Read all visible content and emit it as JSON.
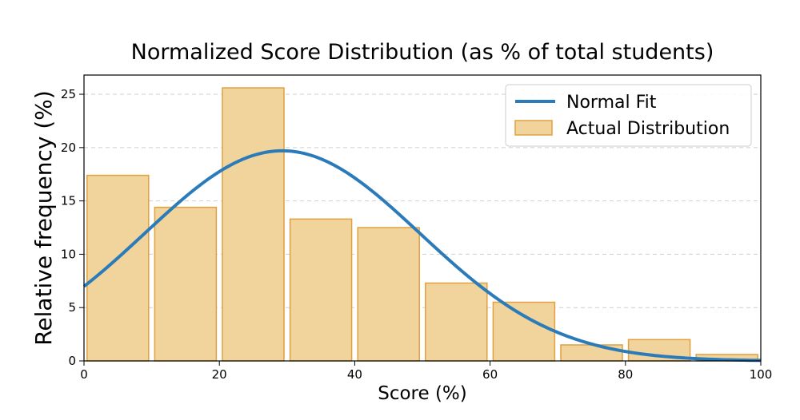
{
  "chart_data": {
    "type": "bar",
    "title": "Normalized Score Distribution (as % of total students)",
    "xlabel": "Score (%)",
    "ylabel": "Relative frequency (%)",
    "xlim": [
      0,
      100
    ],
    "ylim": [
      0,
      26.8
    ],
    "xticks": [
      0,
      20,
      40,
      60,
      80,
      100
    ],
    "yticks": [
      0,
      5,
      10,
      15,
      20,
      25
    ],
    "grid": "horizontal dashed",
    "legend_position": "top-right",
    "bins": [
      {
        "start": 0,
        "end": 10,
        "value": 17.4
      },
      {
        "start": 10,
        "end": 20,
        "value": 14.4
      },
      {
        "start": 20,
        "end": 30,
        "value": 25.6
      },
      {
        "start": 30,
        "end": 40,
        "value": 13.3
      },
      {
        "start": 40,
        "end": 50,
        "value": 12.5
      },
      {
        "start": 50,
        "end": 60,
        "value": 7.3
      },
      {
        "start": 60,
        "end": 70,
        "value": 5.5
      },
      {
        "start": 70,
        "end": 80,
        "value": 1.5
      },
      {
        "start": 80,
        "end": 90,
        "value": 2.0
      },
      {
        "start": 90,
        "end": 100,
        "value": 0.6
      }
    ],
    "series": [
      {
        "name": "Normal Fit",
        "type": "line",
        "mean": 29.3,
        "std": 20.35,
        "peak": 19.7,
        "color": "#2b7bba"
      },
      {
        "name": "Actual Distribution",
        "type": "bar",
        "color": "#f0d49b",
        "edge_color": "#e0a040"
      }
    ]
  }
}
